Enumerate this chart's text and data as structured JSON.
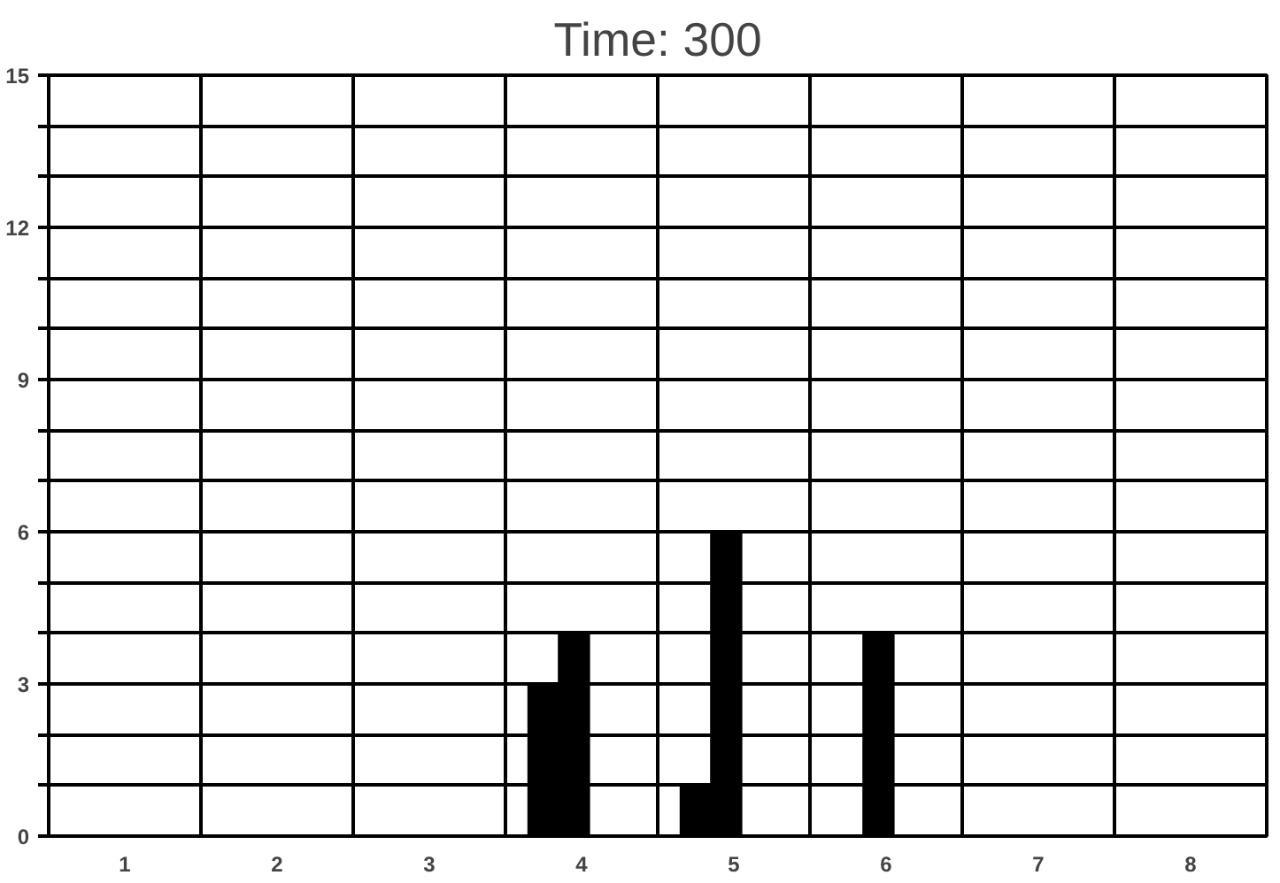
{
  "chart_data": {
    "type": "bar",
    "title": "Time: 300",
    "categories": [
      "1",
      "2",
      "3",
      "4",
      "5",
      "6",
      "7",
      "8"
    ],
    "series": [
      {
        "color": "#000000",
        "values": [
          0,
          0,
          0,
          3,
          1,
          0,
          0,
          0
        ]
      },
      {
        "color": "#000000",
        "values": [
          0,
          0,
          0,
          4,
          6,
          4,
          0,
          0
        ]
      }
    ],
    "ylim": [
      0,
      15
    ],
    "yticks": [
      0,
      {
        "value": 1,
        "label": null
      },
      {
        "value": 2,
        "label": null
      },
      3,
      {
        "value": 4,
        "label": null
      },
      {
        "value": 5,
        "label": null
      },
      6,
      {
        "value": 7,
        "label": null
      },
      {
        "value": 8,
        "label": null
      },
      9,
      {
        "value": 10,
        "label": null
      },
      {
        "value": 11,
        "label": null
      },
      12,
      {
        "value": 13,
        "label": null
      },
      {
        "value": 14,
        "label": null
      },
      15
    ],
    "grid": true
  }
}
